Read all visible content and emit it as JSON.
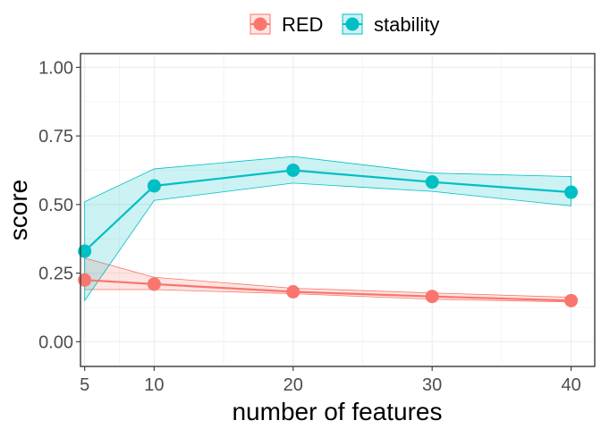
{
  "chart_data": {
    "type": "line",
    "title": "",
    "xlabel": "number of features",
    "ylabel": "score",
    "x": [
      5,
      10,
      20,
      30,
      40
    ],
    "xlim": [
      4.7,
      41.7
    ],
    "ylim": [
      -0.09,
      1.05
    ],
    "xticks": [
      5,
      10,
      20,
      30,
      40
    ],
    "xtick_labels": [
      "5",
      "10",
      "20",
      "30",
      "40"
    ],
    "yticks": [
      0.0,
      0.25,
      0.5,
      0.75,
      1.0
    ],
    "ytick_labels": [
      "0.00",
      "0.25",
      "0.50",
      "0.75",
      "1.00"
    ],
    "grid": true,
    "legend_position": "top",
    "series": [
      {
        "name": "RED",
        "color": "#F8766D",
        "values": [
          0.225,
          0.21,
          0.182,
          0.165,
          0.15
        ],
        "lower": [
          0.19,
          0.19,
          0.175,
          0.155,
          0.145
        ],
        "upper": [
          0.305,
          0.235,
          0.195,
          0.178,
          0.162
        ]
      },
      {
        "name": "stability",
        "color": "#00BFC4",
        "values": [
          0.33,
          0.568,
          0.625,
          0.582,
          0.545
        ],
        "lower": [
          0.15,
          0.515,
          0.578,
          0.548,
          0.495
        ],
        "upper": [
          0.51,
          0.63,
          0.675,
          0.615,
          0.602
        ]
      }
    ]
  }
}
